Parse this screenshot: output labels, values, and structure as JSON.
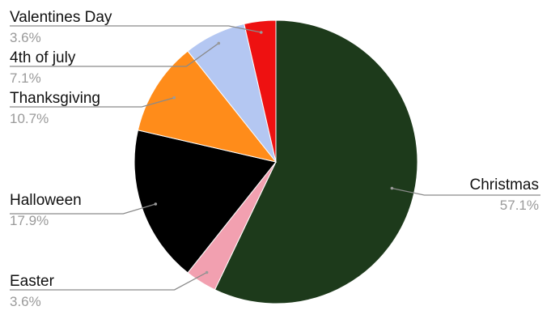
{
  "chart_data": {
    "type": "pie",
    "legend": "none",
    "slices": [
      {
        "label": "Christmas",
        "value": 57.1,
        "display": "57.1%",
        "color": "#1d3a1b"
      },
      {
        "label": "Easter",
        "value": 3.6,
        "display": "3.6%",
        "color": "#f2a0b0"
      },
      {
        "label": "Halloween",
        "value": 17.9,
        "display": "17.9%",
        "color": "#000000"
      },
      {
        "label": "Thanksgiving",
        "value": 10.7,
        "display": "10.7%",
        "color": "#ff8c1a"
      },
      {
        "label": "4th of july",
        "value": 7.1,
        "display": "7.1%",
        "color": "#b4c7f2"
      },
      {
        "label": "Valentines Day",
        "value": 3.6,
        "display": "3.6%",
        "color": "#ee1111"
      }
    ]
  }
}
